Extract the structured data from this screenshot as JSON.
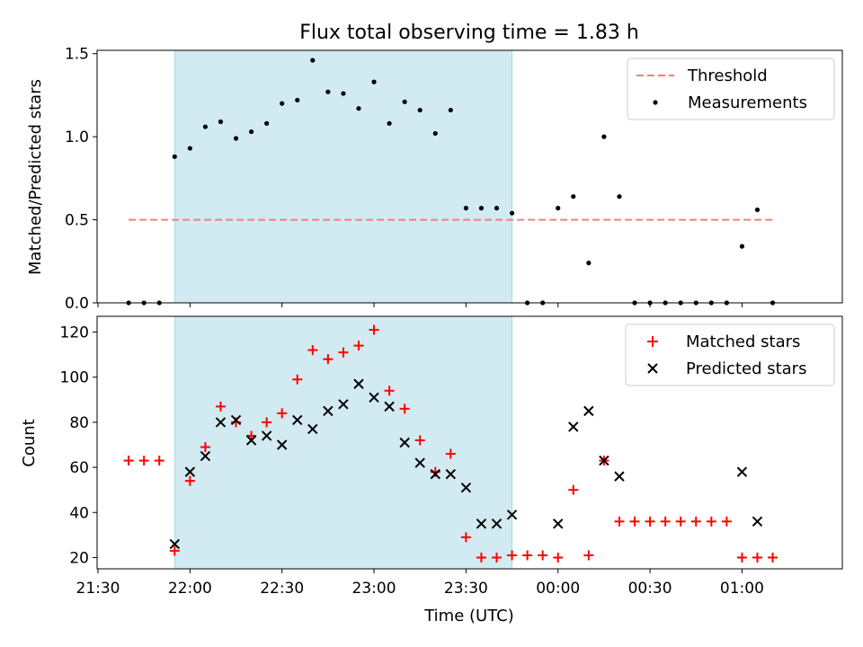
{
  "chart_data": [
    {
      "type": "scatter",
      "title": "Flux total observing time = 1.83 h",
      "xlabel": "",
      "ylabel": "Matched/Predicted stars",
      "xlim": [
        "21:30",
        "01:10"
      ],
      "ylim": [
        0,
        1.52
      ],
      "yticks": [
        0,
        0.5,
        1.0,
        1.5
      ],
      "ytick_labels": [
        "0.0",
        "0.5",
        "1.0",
        "1.5"
      ],
      "shaded_interval": {
        "start": "21:55",
        "end": "23:45",
        "color": "#add8e6"
      },
      "threshold": {
        "label": "Threshold",
        "y": 0.5,
        "x_start": "21:40",
        "x_end": "01:10",
        "color": "#f08080"
      },
      "series": [
        {
          "name": "Measurements",
          "color": "#000000",
          "x": [
            "21:40",
            "21:45",
            "21:50",
            "21:55",
            "22:00",
            "22:05",
            "22:10",
            "22:15",
            "22:20",
            "22:25",
            "22:30",
            "22:35",
            "22:40",
            "22:45",
            "22:50",
            "22:55",
            "23:00",
            "23:05",
            "23:10",
            "23:15",
            "23:20",
            "23:25",
            "23:30",
            "23:35",
            "23:40",
            "23:45",
            "23:50",
            "23:55",
            "00:00",
            "00:05",
            "00:10",
            "00:15",
            "00:20",
            "00:25",
            "00:30",
            "00:35",
            "00:40",
            "00:45",
            "00:50",
            "00:55",
            "01:00",
            "01:05",
            "01:10"
          ],
          "y": [
            0,
            0,
            0,
            0.88,
            0.93,
            1.06,
            1.09,
            0.99,
            1.03,
            1.08,
            1.2,
            1.22,
            1.46,
            1.27,
            1.26,
            1.17,
            1.33,
            1.08,
            1.21,
            1.16,
            1.02,
            1.16,
            0.57,
            0.57,
            0.57,
            0.54,
            0,
            0,
            0.57,
            0.64,
            0.24,
            1.0,
            0.64,
            0,
            0,
            0,
            0,
            0,
            0,
            0,
            0.34,
            0.56,
            0
          ]
        }
      ],
      "legend": {
        "position": "top-right",
        "entries": [
          "Threshold",
          "Measurements"
        ]
      }
    },
    {
      "type": "scatter",
      "title": "",
      "xlabel": "Time (UTC)",
      "ylabel": "Count",
      "xlim": [
        "21:30",
        "01:10"
      ],
      "ylim": [
        15,
        127
      ],
      "yticks": [
        20,
        40,
        60,
        80,
        100,
        120
      ],
      "xtick_labels": [
        "21:30",
        "22:00",
        "22:30",
        "23:00",
        "23:30",
        "00:00",
        "00:30",
        "01:00"
      ],
      "shaded_interval": {
        "start": "21:55",
        "end": "23:45",
        "color": "#add8e6"
      },
      "series": [
        {
          "name": "Matched stars",
          "marker": "+",
          "color": "#ff0000",
          "x": [
            "21:40",
            "21:45",
            "21:50",
            "21:55",
            "22:00",
            "22:05",
            "22:10",
            "22:15",
            "22:20",
            "22:25",
            "22:30",
            "22:35",
            "22:40",
            "22:45",
            "22:50",
            "22:55",
            "23:00",
            "23:05",
            "23:10",
            "23:15",
            "23:20",
            "23:25",
            "23:30",
            "23:35",
            "23:40",
            "23:45",
            "23:50",
            "23:55",
            "00:00",
            "00:05",
            "00:10",
            "00:15",
            "00:20",
            "00:25",
            "00:30",
            "00:35",
            "00:40",
            "00:45",
            "00:50",
            "00:55",
            "01:00",
            "01:05",
            "01:10"
          ],
          "y": [
            63,
            63,
            63,
            23,
            54,
            69,
            87,
            80,
            74,
            80,
            84,
            99,
            112,
            108,
            111,
            114,
            121,
            94,
            86,
            72,
            58,
            66,
            29,
            20,
            20,
            21,
            21,
            21,
            20,
            50,
            21,
            63,
            36,
            36,
            36,
            36,
            36,
            36,
            36,
            36,
            20,
            20,
            20
          ]
        },
        {
          "name": "Predicted stars",
          "marker": "x",
          "color": "#000000",
          "x": [
            "21:55",
            "22:00",
            "22:05",
            "22:10",
            "22:15",
            "22:20",
            "22:25",
            "22:30",
            "22:35",
            "22:40",
            "22:45",
            "22:50",
            "22:55",
            "23:00",
            "23:05",
            "23:10",
            "23:15",
            "23:20",
            "23:25",
            "23:30",
            "23:35",
            "23:40",
            "23:45",
            "00:00",
            "00:05",
            "00:10",
            "00:15",
            "00:20",
            "01:00",
            "01:05"
          ],
          "y": [
            26,
            58,
            65,
            80,
            81,
            72,
            74,
            70,
            81,
            77,
            85,
            88,
            97,
            91,
            87,
            71,
            62,
            57,
            57,
            51,
            35,
            35,
            39,
            35,
            78,
            85,
            63,
            56,
            58,
            36
          ]
        }
      ],
      "legend": {
        "position": "top-right",
        "entries": [
          "Matched stars",
          "Predicted stars"
        ]
      }
    }
  ]
}
